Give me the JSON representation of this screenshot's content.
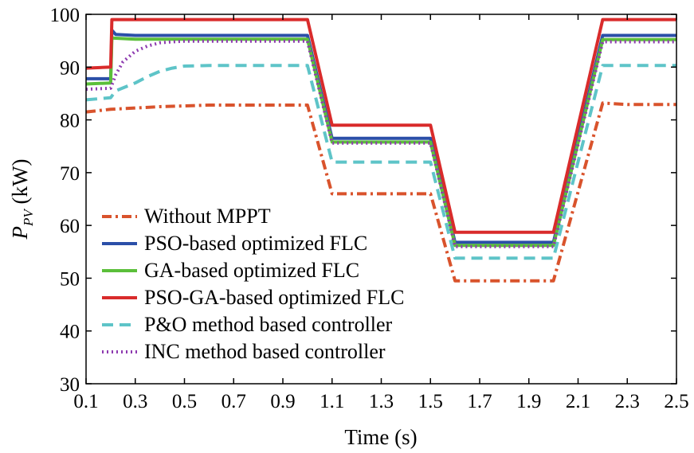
{
  "chart_data": {
    "type": "line",
    "xlabel": "Time (s)",
    "ylabel": {
      "main": "P",
      "subscript": "PV",
      "unit": " (kW)"
    },
    "xlim": [
      0.1,
      2.5
    ],
    "ylim": [
      30,
      100
    ],
    "xticks": [
      "0.1",
      "0.3",
      "0.5",
      "0.7",
      "0.9",
      "1.1",
      "1.3",
      "1.5",
      "1.7",
      "1.9",
      "2.1",
      "2.3",
      "2.5"
    ],
    "yticks": [
      "30",
      "40",
      "50",
      "60",
      "70",
      "80",
      "90",
      "100"
    ],
    "grid": false,
    "legend_position": "lower-left",
    "series": [
      {
        "name": "Without MPPT",
        "color": "#d9532c",
        "dash": "dashdot",
        "x": [
          0.1,
          0.2,
          0.4,
          0.6,
          0.8,
          1.0,
          1.1,
          1.2,
          1.4,
          1.5,
          1.6,
          1.7,
          1.9,
          2.0,
          2.2,
          2.3,
          2.5
        ],
        "y": [
          81.5,
          82.0,
          82.5,
          82.8,
          82.8,
          82.8,
          66.0,
          66.0,
          66.0,
          66.0,
          49.5,
          49.5,
          49.5,
          49.5,
          83.2,
          82.9,
          82.9
        ]
      },
      {
        "name": "PSO-based optimized FLC",
        "color": "#2b4fa8",
        "dash": "solid",
        "x": [
          0.1,
          0.2,
          0.205,
          0.22,
          0.3,
          1.0,
          1.1,
          1.5,
          1.6,
          2.0,
          2.2,
          2.5
        ],
        "y": [
          87.8,
          87.8,
          97.0,
          96.2,
          96.0,
          96.0,
          76.5,
          76.5,
          56.8,
          56.8,
          96.0,
          96.0
        ]
      },
      {
        "name": "GA-based optimized FLC",
        "color": "#5bbf3a",
        "dash": "solid",
        "x": [
          0.1,
          0.2,
          0.205,
          0.3,
          1.0,
          1.1,
          1.5,
          1.6,
          2.0,
          2.2,
          2.5
        ],
        "y": [
          86.8,
          87.0,
          95.5,
          95.3,
          95.3,
          75.8,
          75.8,
          56.2,
          56.2,
          95.2,
          95.2
        ]
      },
      {
        "name": "PSO-GA-based optimized FLC",
        "color": "#d92b2b",
        "dash": "solid",
        "x": [
          0.1,
          0.2,
          0.205,
          1.0,
          1.1,
          1.5,
          1.6,
          2.0,
          2.2,
          2.5
        ],
        "y": [
          89.8,
          90.0,
          99.0,
          99.0,
          79.0,
          79.0,
          58.7,
          58.7,
          99.0,
          99.0
        ]
      },
      {
        "name": "P&O method based controller",
        "color": "#5ec4c8",
        "dash": "dash",
        "x": [
          0.1,
          0.2,
          0.22,
          0.3,
          0.35,
          0.4,
          0.45,
          0.5,
          0.6,
          1.0,
          1.1,
          1.5,
          1.6,
          2.0,
          2.2,
          2.5
        ],
        "y": [
          83.8,
          84.2,
          85.5,
          87.0,
          88.2,
          89.2,
          89.8,
          90.2,
          90.3,
          90.3,
          72.0,
          72.0,
          53.8,
          53.8,
          90.3,
          90.3
        ]
      },
      {
        "name": "INC method based controller",
        "color": "#8e3bb0",
        "dash": "dot",
        "x": [
          0.1,
          0.2,
          0.22,
          0.25,
          0.3,
          0.35,
          0.4,
          0.45,
          0.5,
          0.6,
          1.0,
          1.1,
          1.5,
          1.6,
          2.0,
          2.2,
          2.5
        ],
        "y": [
          85.8,
          86.0,
          88.5,
          91.0,
          93.0,
          94.0,
          94.6,
          94.8,
          94.9,
          94.9,
          94.9,
          75.6,
          75.6,
          56.0,
          56.0,
          94.8,
          94.8
        ]
      }
    ]
  }
}
